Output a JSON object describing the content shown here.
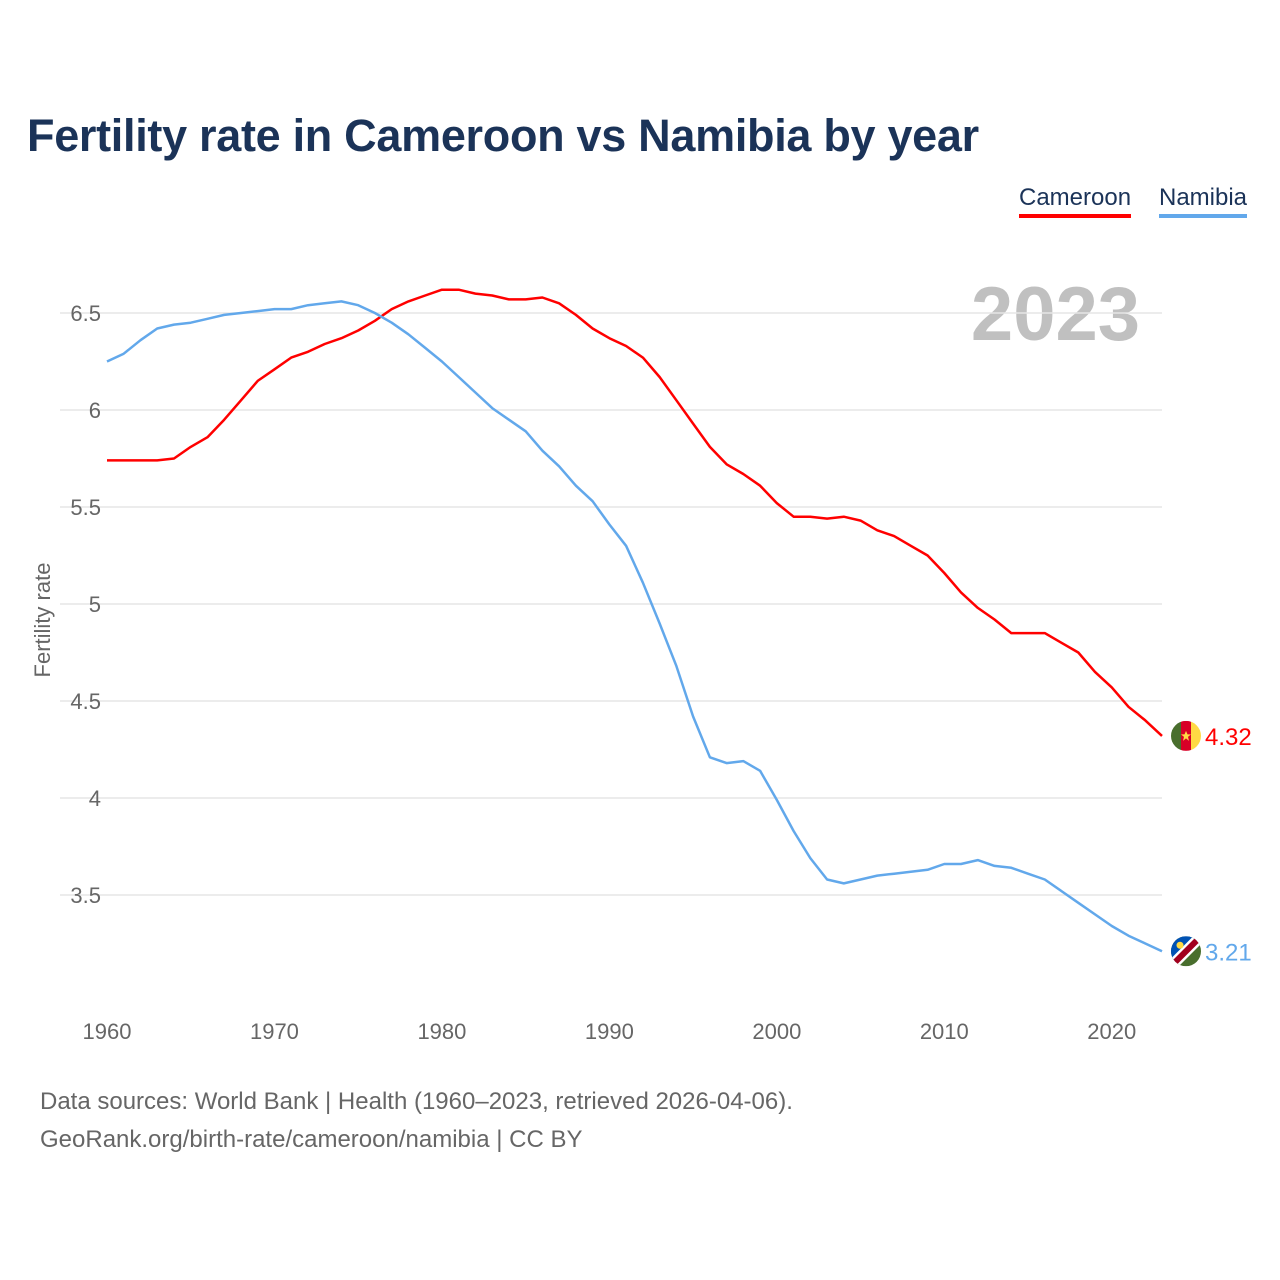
{
  "title": "Fertility rate in Cameroon vs Namibia by year",
  "legend": [
    "Cameroon",
    "Namibia"
  ],
  "year_label": "2023",
  "source_line1": "Data sources: World Bank | Health (1960–2023, retrieved 2026-04-06).",
  "source_line2": "GeoRank.org/birth-rate/cameroon/namibia | CC BY",
  "colors": {
    "Cameroon": "#ff0000",
    "Namibia": "#62a8eb",
    "grid": "#e6e6e6",
    "axis_text": "#666666",
    "year": "#c0c0c0"
  },
  "chart_data": {
    "type": "line",
    "title": "Fertility rate in Cameroon vs Namibia by year",
    "xlabel": "",
    "ylabel": "Fertility rate",
    "xlim": [
      1960,
      2023
    ],
    "ylim": [
      3.0,
      6.8
    ],
    "xticks": [
      1960,
      1970,
      1980,
      1990,
      2000,
      2010,
      2020
    ],
    "yticks": [
      3.5,
      4,
      4.5,
      5,
      5.5,
      6,
      6.5
    ],
    "ytick_labels": [
      "3.5",
      "4",
      "4.5",
      "5",
      "5.5",
      "6",
      "6.5"
    ],
    "grid": true,
    "legend_position": "top-right",
    "x": [
      1960,
      1961,
      1962,
      1963,
      1964,
      1965,
      1966,
      1967,
      1968,
      1969,
      1970,
      1971,
      1972,
      1973,
      1974,
      1975,
      1976,
      1977,
      1978,
      1979,
      1980,
      1981,
      1982,
      1983,
      1984,
      1985,
      1986,
      1987,
      1988,
      1989,
      1990,
      1991,
      1992,
      1993,
      1994,
      1995,
      1996,
      1997,
      1998,
      1999,
      2000,
      2001,
      2002,
      2003,
      2004,
      2005,
      2006,
      2007,
      2008,
      2009,
      2010,
      2011,
      2012,
      2013,
      2014,
      2015,
      2016,
      2017,
      2018,
      2019,
      2020,
      2021,
      2022,
      2023
    ],
    "series": [
      {
        "name": "Cameroon",
        "end_label": "4.32",
        "values": [
          5.74,
          5.74,
          5.74,
          5.74,
          5.75,
          5.81,
          5.86,
          5.95,
          6.05,
          6.15,
          6.21,
          6.27,
          6.3,
          6.34,
          6.37,
          6.41,
          6.46,
          6.52,
          6.56,
          6.59,
          6.62,
          6.62,
          6.6,
          6.59,
          6.57,
          6.57,
          6.58,
          6.55,
          6.49,
          6.42,
          6.37,
          6.33,
          6.27,
          6.17,
          6.05,
          5.93,
          5.81,
          5.72,
          5.67,
          5.61,
          5.52,
          5.45,
          5.45,
          5.44,
          5.45,
          5.43,
          5.38,
          5.35,
          5.3,
          5.25,
          5.16,
          5.06,
          4.98,
          4.92,
          4.85,
          4.85,
          4.85,
          4.8,
          4.75,
          4.65,
          4.57,
          4.47,
          4.4,
          4.32
        ]
      },
      {
        "name": "Namibia",
        "end_label": "3.21",
        "values": [
          6.25,
          6.29,
          6.36,
          6.42,
          6.44,
          6.45,
          6.47,
          6.49,
          6.5,
          6.51,
          6.52,
          6.52,
          6.54,
          6.55,
          6.56,
          6.54,
          6.5,
          6.45,
          6.39,
          6.32,
          6.25,
          6.17,
          6.09,
          6.01,
          5.95,
          5.89,
          5.79,
          5.71,
          5.61,
          5.53,
          5.41,
          5.3,
          5.11,
          4.9,
          4.68,
          4.42,
          4.21,
          4.18,
          4.19,
          4.14,
          3.99,
          3.83,
          3.69,
          3.58,
          3.56,
          3.58,
          3.6,
          3.61,
          3.62,
          3.63,
          3.66,
          3.66,
          3.68,
          3.65,
          3.64,
          3.61,
          3.58,
          3.52,
          3.46,
          3.4,
          3.34,
          3.29,
          3.25,
          3.21
        ]
      }
    ]
  }
}
